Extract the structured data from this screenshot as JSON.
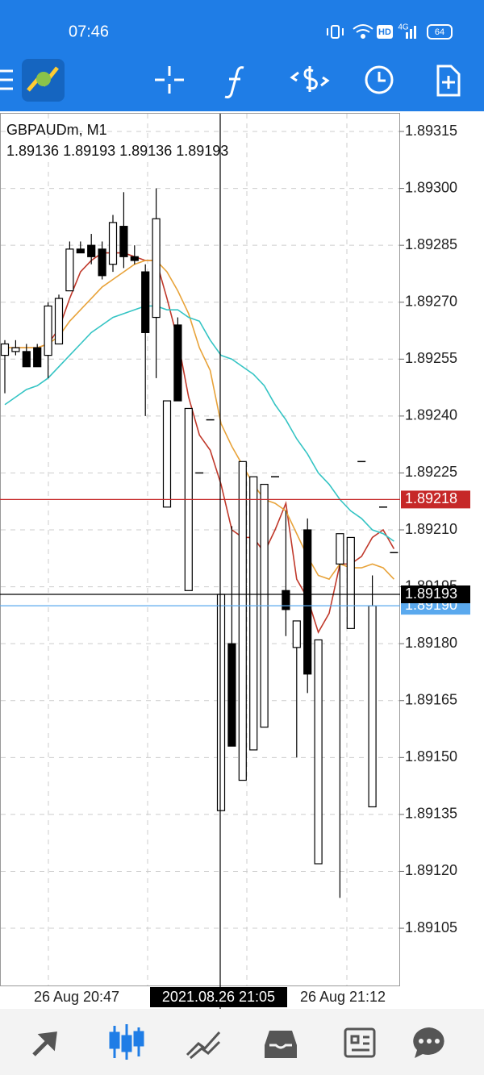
{
  "status_bar": {
    "time": "07:46",
    "hd": "HD",
    "network": "4G",
    "battery": "64"
  },
  "chart": {
    "symbol": "GBPAUDm, M1",
    "ohlc": "1.89136 1.89193 1.89136 1.89193",
    "ylim": [
      1.8909,
      1.8932
    ],
    "yticks": [
      1.89315,
      {
        "value": 1.893,
        "label": "1.89300"
      },
      1.89285,
      {
        "value": 1.8927,
        "label": "1.89270"
      },
      1.89255,
      {
        "value": 1.8924,
        "label": "1.89240"
      },
      1.89225,
      {
        "value": 1.8921,
        "label": "1.89210"
      },
      1.89195,
      {
        "value": 1.8918,
        "label": "1.89180"
      },
      1.89165,
      {
        "value": 1.8915,
        "label": "1.89150"
      },
      1.89135,
      {
        "value": 1.8912,
        "label": "1.89120"
      },
      1.89105
    ],
    "grid": true,
    "price_lines": [
      {
        "value": 1.89218,
        "color": "#c62828"
      },
      {
        "value": 1.8919,
        "label": "1.89190",
        "color": "#5aa9ee"
      },
      {
        "value": 1.89193,
        "color": "#000000"
      }
    ],
    "time_labels": [
      "26 Aug 20:47",
      "26 Aug 21:12"
    ],
    "crosshair_time": "2021.08.26 21:05",
    "candles": {
      "open": [
        1.89256,
        1.89257,
        1.89257,
        1.89258,
        1.89256,
        1.89259,
        1.89273,
        1.89284,
        1.89285,
        1.89284,
        1.8928,
        1.8929,
        1.89282,
        1.89278,
        1.89266,
        1.89216,
        1.89264,
        1.89194,
        1.89225,
        1.89239,
        1.89136,
        1.8918,
        1.89144,
        1.89152,
        1.89158,
        1.89224,
        1.89194,
        1.89179,
        1.8921,
        1.89122,
        null,
        1.89201,
        1.89184,
        1.89228,
        1.89137,
        1.89216,
        1.89204
      ],
      "high": [
        1.8926,
        1.8926,
        1.89259,
        1.89259,
        1.8927,
        1.89272,
        1.89286,
        1.89286,
        1.89288,
        1.89286,
        1.89293,
        1.89299,
        1.89285,
        1.8928,
        1.893,
        1.89244,
        1.89266,
        1.89242,
        1.89225,
        1.89239,
        1.89193,
        1.89211,
        1.89228,
        1.89224,
        1.89222,
        1.89224,
        1.89215,
        1.89186,
        1.89213,
        1.89181,
        null,
        1.89209,
        1.89208,
        1.89228,
        1.89198,
        1.89216,
        1.89204
      ],
      "low": [
        1.89246,
        1.89256,
        1.89253,
        1.89253,
        1.8925,
        1.89259,
        1.89273,
        1.89283,
        1.8928,
        1.89276,
        1.89278,
        1.89279,
        1.8928,
        1.8924,
        1.8925,
        1.89216,
        1.89244,
        1.89194,
        1.89225,
        1.89239,
        1.89136,
        1.89153,
        1.89144,
        1.89152,
        1.89158,
        1.89224,
        1.89182,
        1.8915,
        1.89167,
        1.89122,
        null,
        1.89113,
        1.89184,
        1.89228,
        1.89137,
        1.89216,
        1.89204
      ],
      "close": [
        1.89259,
        1.89258,
        1.89253,
        1.89253,
        1.89269,
        1.89271,
        1.89284,
        1.89283,
        1.89282,
        1.89277,
        1.89291,
        1.89282,
        1.89281,
        1.89262,
        1.89292,
        1.89244,
        1.89244,
        1.89242,
        1.89225,
        1.89239,
        1.89193,
        1.89153,
        1.89228,
        1.89224,
        1.89222,
        1.89224,
        1.89189,
        1.89186,
        1.89172,
        1.89181,
        null,
        1.89209,
        1.89208,
        1.89228,
        1.8919,
        1.89216,
        1.89204
      ]
    },
    "ma": [
      {
        "color": "#c0392b",
        "values": [
          1.89258,
          1.89258,
          1.89258,
          1.89258,
          1.89259,
          1.89263,
          1.89271,
          1.89278,
          1.89281,
          1.89283,
          1.89283,
          1.89283,
          1.89282,
          1.89281,
          1.89281,
          1.89271,
          1.8926,
          1.89245,
          1.89235,
          1.89231,
          1.89222,
          1.8921,
          1.89208,
          1.89208,
          1.89204,
          1.8921,
          1.89217,
          1.89197,
          1.89192,
          1.89183,
          1.89188,
          1.89201,
          1.89201,
          1.89203,
          1.89208,
          1.8921,
          1.89205
        ]
      },
      {
        "color": "#e8a33a",
        "values": [
          1.89258,
          1.89258,
          1.89258,
          1.89258,
          1.89259,
          1.89261,
          1.89265,
          1.89268,
          1.89271,
          1.89274,
          1.89276,
          1.89278,
          1.8928,
          1.89281,
          1.89281,
          1.89278,
          1.89273,
          1.89267,
          1.89258,
          1.89252,
          1.89238,
          1.89232,
          1.89227,
          1.89222,
          1.89218,
          1.89217,
          1.89215,
          1.89209,
          1.89203,
          1.89198,
          1.89197,
          1.89201,
          1.892,
          1.892,
          1.89201,
          1.892,
          1.89197
        ]
      },
      {
        "color": "#35c4c4",
        "values": [
          1.89243,
          1.89245,
          1.89247,
          1.89248,
          1.8925,
          1.89253,
          1.89256,
          1.89259,
          1.89262,
          1.89264,
          1.89266,
          1.89267,
          1.89268,
          1.89269,
          1.89269,
          1.89268,
          1.89268,
          1.89266,
          1.89265,
          1.8926,
          1.89256,
          1.89255,
          1.89253,
          1.89251,
          1.89248,
          1.89243,
          1.89239,
          1.89234,
          1.8923,
          1.89225,
          1.89222,
          1.89218,
          1.89215,
          1.89213,
          1.8921,
          1.89209,
          1.89207
        ]
      }
    ]
  }
}
